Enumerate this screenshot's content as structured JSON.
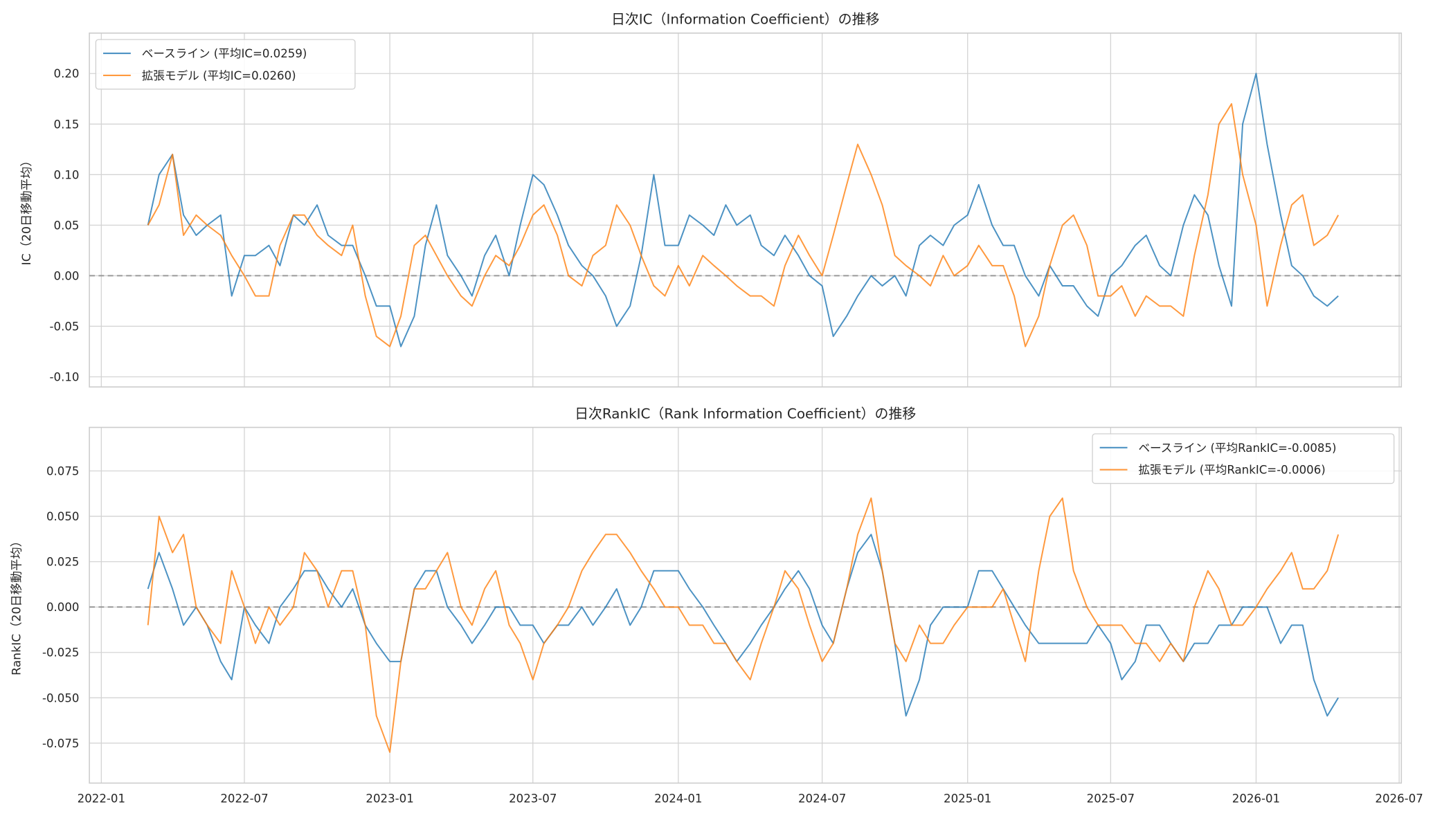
{
  "chart_data": [
    {
      "type": "line",
      "title": "日次IC（Information Coefficient）の推移",
      "xlabel": "",
      "ylabel": "IC（20日移動平均）",
      "ylim": [
        -0.11,
        0.24
      ],
      "yticks": [
        "-0.10",
        "-0.05",
        "0.00",
        "0.05",
        "0.10",
        "0.15",
        "0.20"
      ],
      "ytick_values": [
        -0.1,
        -0.05,
        0.0,
        0.05,
        0.1,
        0.15,
        0.2
      ],
      "grid": true,
      "legend_position": "top-left",
      "reference_line": 0,
      "series": [
        {
          "name": "ベースライン (平均IC=0.0259)",
          "color": "#1f77b4",
          "values": [
            0.05,
            0.1,
            0.12,
            0.06,
            0.04,
            0.05,
            0.06,
            -0.02,
            0.02,
            0.02,
            0.03,
            0.01,
            0.06,
            0.05,
            0.07,
            0.04,
            0.03,
            0.03,
            0.0,
            -0.03,
            -0.03,
            -0.07,
            -0.04,
            0.03,
            0.07,
            0.02,
            0.0,
            -0.02,
            0.02,
            0.04,
            0.0,
            0.05,
            0.1,
            0.09,
            0.06,
            0.03,
            0.01,
            0.0,
            -0.02,
            -0.05,
            -0.03,
            0.02,
            0.1,
            0.03,
            0.03,
            0.06,
            0.05,
            0.04,
            0.07,
            0.05,
            0.06,
            0.03,
            0.02,
            0.04,
            0.02,
            0.0,
            -0.01,
            -0.06,
            -0.04,
            -0.02,
            0.0,
            -0.01,
            0.0,
            -0.02,
            0.03,
            0.04,
            0.03,
            0.05,
            0.06,
            0.09,
            0.05,
            0.03,
            0.03,
            0.0,
            -0.02,
            0.01,
            -0.01,
            -0.01,
            -0.03,
            -0.04,
            0.0,
            0.01,
            0.03,
            0.04,
            0.01,
            0.0,
            0.05,
            0.08,
            0.06,
            0.01,
            -0.03,
            0.15,
            0.2,
            0.13,
            0.06,
            0.01,
            0.0,
            -0.02,
            -0.03,
            -0.02
          ]
        },
        {
          "name": "拡張モデル (平均IC=0.0260)",
          "color": "#ff7f0e",
          "values": [
            0.05,
            0.07,
            0.12,
            0.04,
            0.06,
            0.05,
            0.04,
            0.02,
            0.0,
            -0.02,
            -0.02,
            0.03,
            0.06,
            0.06,
            0.04,
            0.03,
            0.02,
            0.05,
            -0.02,
            -0.06,
            -0.07,
            -0.04,
            0.03,
            0.04,
            0.02,
            0.0,
            -0.02,
            -0.03,
            0.0,
            0.02,
            0.01,
            0.03,
            0.06,
            0.07,
            0.04,
            0.0,
            -0.01,
            0.02,
            0.03,
            0.07,
            0.05,
            0.02,
            -0.01,
            -0.02,
            0.01,
            -0.01,
            0.02,
            0.01,
            0.0,
            -0.01,
            -0.02,
            -0.02,
            -0.03,
            0.01,
            0.04,
            0.02,
            0.0,
            0.04,
            0.09,
            0.13,
            0.1,
            0.07,
            0.02,
            0.01,
            0.0,
            -0.01,
            0.02,
            0.0,
            0.01,
            0.03,
            0.01,
            0.01,
            -0.02,
            -0.07,
            -0.04,
            0.01,
            0.05,
            0.06,
            0.03,
            -0.02,
            -0.02,
            -0.01,
            -0.04,
            -0.02,
            -0.03,
            -0.03,
            -0.04,
            0.02,
            0.08,
            0.15,
            0.17,
            0.1,
            0.05,
            -0.03,
            0.03,
            0.07,
            0.08,
            0.03,
            0.04,
            0.06
          ]
        }
      ]
    },
    {
      "type": "line",
      "title": "日次RankIC（Rank Information Coefficient）の推移",
      "xlabel": "",
      "ylabel": "RankIC（20日移動平均）",
      "ylim": [
        -0.097,
        0.099
      ],
      "yticks": [
        "-0.075",
        "-0.050",
        "-0.025",
        "0.000",
        "0.025",
        "0.050",
        "0.075"
      ],
      "ytick_values": [
        -0.075,
        -0.05,
        -0.025,
        0.0,
        0.025,
        0.05,
        0.075
      ],
      "grid": true,
      "legend_position": "top-right",
      "reference_line": 0,
      "series": [
        {
          "name": "ベースライン (平均RankIC=-0.0085)",
          "color": "#1f77b4",
          "values": [
            0.01,
            0.03,
            0.01,
            -0.01,
            0.0,
            -0.01,
            -0.03,
            -0.04,
            0.0,
            -0.01,
            -0.02,
            0.0,
            0.01,
            0.02,
            0.02,
            0.01,
            0.0,
            0.01,
            -0.01,
            -0.02,
            -0.03,
            -0.03,
            0.01,
            0.02,
            0.02,
            0.0,
            -0.01,
            -0.02,
            -0.01,
            0.0,
            0.0,
            -0.01,
            -0.01,
            -0.02,
            -0.01,
            -0.01,
            0.0,
            -0.01,
            0.0,
            0.01,
            -0.01,
            0.0,
            0.02,
            0.02,
            0.02,
            0.01,
            0.0,
            -0.01,
            -0.02,
            -0.03,
            -0.02,
            -0.01,
            0.0,
            0.01,
            0.02,
            0.01,
            -0.01,
            -0.02,
            0.01,
            0.03,
            0.04,
            0.02,
            -0.02,
            -0.06,
            -0.04,
            -0.01,
            0.0,
            0.0,
            0.0,
            0.02,
            0.02,
            0.01,
            0.0,
            -0.01,
            -0.02,
            -0.02,
            -0.02,
            -0.02,
            -0.02,
            -0.01,
            -0.02,
            -0.04,
            -0.03,
            -0.01,
            -0.01,
            -0.02,
            -0.03,
            -0.02,
            -0.02,
            -0.01,
            -0.01,
            0.0,
            0.0,
            0.0,
            -0.02,
            -0.01,
            -0.01,
            -0.04,
            -0.06,
            -0.05
          ]
        },
        {
          "name": "拡張モデル (平均RankIC=-0.0006)",
          "color": "#ff7f0e",
          "values": [
            -0.01,
            0.05,
            0.03,
            0.04,
            0.0,
            -0.01,
            -0.02,
            0.02,
            0.0,
            -0.02,
            0.0,
            -0.01,
            0.0,
            0.03,
            0.02,
            0.0,
            0.02,
            0.02,
            -0.01,
            -0.06,
            -0.08,
            -0.03,
            0.01,
            0.01,
            0.02,
            0.03,
            0.0,
            -0.01,
            0.01,
            0.02,
            -0.01,
            -0.02,
            -0.04,
            -0.02,
            -0.01,
            0.0,
            0.02,
            0.03,
            0.04,
            0.04,
            0.03,
            0.02,
            0.01,
            0.0,
            0.0,
            -0.01,
            -0.01,
            -0.02,
            -0.02,
            -0.03,
            -0.04,
            -0.02,
            0.0,
            0.02,
            0.01,
            -0.01,
            -0.03,
            -0.02,
            0.01,
            0.04,
            0.06,
            0.02,
            -0.02,
            -0.03,
            -0.01,
            -0.02,
            -0.02,
            -0.01,
            0.0,
            0.0,
            0.0,
            0.01,
            -0.01,
            -0.03,
            0.02,
            0.05,
            0.06,
            0.02,
            0.0,
            -0.01,
            -0.01,
            -0.01,
            -0.02,
            -0.02,
            -0.03,
            -0.02,
            -0.03,
            0.0,
            0.02,
            0.01,
            -0.01,
            -0.01,
            0.0,
            0.01,
            0.02,
            0.03,
            0.01,
            0.01,
            0.02,
            0.04
          ]
        }
      ]
    }
  ],
  "x_dates": [
    "2022-03-01",
    "2022-03-15",
    "2022-04-01",
    "2022-04-15",
    "2022-05-01",
    "2022-05-15",
    "2022-06-01",
    "2022-06-15",
    "2022-07-01",
    "2022-07-15",
    "2022-08-01",
    "2022-08-15",
    "2022-09-01",
    "2022-09-15",
    "2022-10-01",
    "2022-10-15",
    "2022-11-01",
    "2022-11-15",
    "2022-12-01",
    "2022-12-15",
    "2023-01-01",
    "2023-01-15",
    "2023-02-01",
    "2023-02-15",
    "2023-03-01",
    "2023-03-15",
    "2023-04-01",
    "2023-04-15",
    "2023-05-01",
    "2023-05-15",
    "2023-06-01",
    "2023-06-15",
    "2023-07-01",
    "2023-07-15",
    "2023-08-01",
    "2023-08-15",
    "2023-09-01",
    "2023-09-15",
    "2023-10-01",
    "2023-10-15",
    "2023-11-01",
    "2023-11-15",
    "2023-12-01",
    "2023-12-15",
    "2024-01-01",
    "2024-01-15",
    "2024-02-01",
    "2024-02-15",
    "2024-03-01",
    "2024-03-15",
    "2024-04-01",
    "2024-04-15",
    "2024-05-01",
    "2024-05-15",
    "2024-06-01",
    "2024-06-15",
    "2024-07-01",
    "2024-07-15",
    "2024-08-01",
    "2024-08-15",
    "2024-09-01",
    "2024-09-15",
    "2024-10-01",
    "2024-10-15",
    "2024-11-01",
    "2024-11-15",
    "2024-12-01",
    "2024-12-15",
    "2025-01-01",
    "2025-01-15",
    "2025-02-01",
    "2025-02-15",
    "2025-03-01",
    "2025-03-15",
    "2025-04-01",
    "2025-04-15",
    "2025-05-01",
    "2025-05-15",
    "2025-06-01",
    "2025-06-15",
    "2025-07-01",
    "2025-07-15",
    "2025-08-01",
    "2025-08-15",
    "2025-09-01",
    "2025-09-15",
    "2025-10-01",
    "2025-10-15",
    "2025-11-01",
    "2025-11-15",
    "2025-12-01",
    "2025-12-15",
    "2026-01-01",
    "2026-01-15",
    "2026-02-01",
    "2026-02-15",
    "2026-03-01",
    "2026-03-15",
    "2026-04-01",
    "2026-04-15"
  ],
  "xticks": [
    "2022-01",
    "2022-07",
    "2023-01",
    "2023-07",
    "2024-01",
    "2024-07",
    "2025-01",
    "2025-07",
    "2026-01",
    "2026-07"
  ],
  "xtick_dates": [
    "2022-01-01",
    "2022-07-01",
    "2023-01-01",
    "2023-07-01",
    "2024-01-01",
    "2024-07-01",
    "2025-01-01",
    "2025-07-01",
    "2026-01-01",
    "2026-07-01"
  ]
}
